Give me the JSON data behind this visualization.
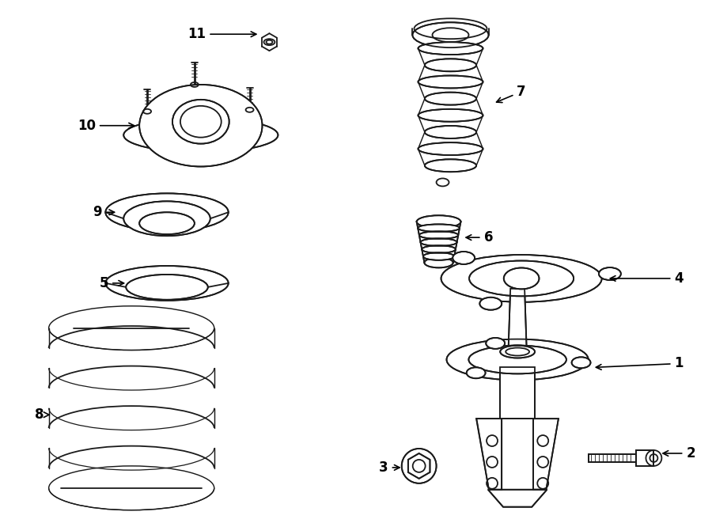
{
  "bg_color": "#ffffff",
  "line_color": "#1a1a1a",
  "lw": 1.3,
  "fig_w": 9.0,
  "fig_h": 6.61,
  "dpi": 100
}
